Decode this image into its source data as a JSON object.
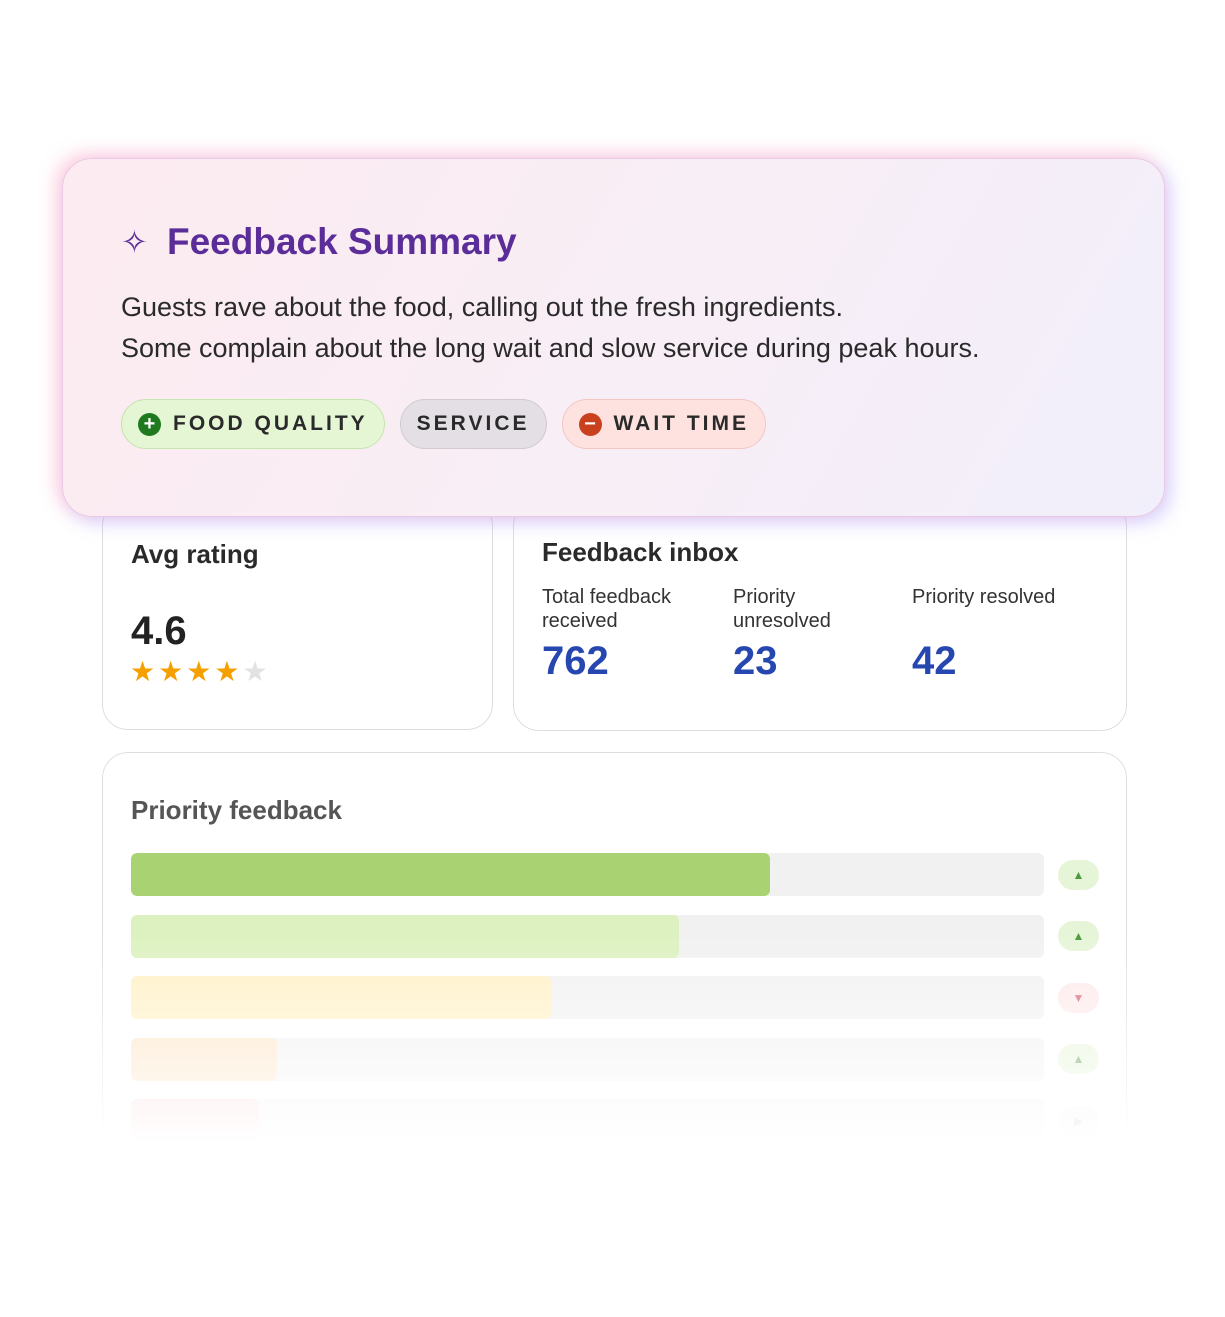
{
  "summary": {
    "title": "Feedback Summary",
    "lines": [
      "Guests rave about the food, calling out the fresh ingredients.",
      "Some complain about the long wait and slow service during peak hours."
    ],
    "tags": [
      {
        "label": "FOOD QUALITY",
        "sentiment": "positive"
      },
      {
        "label": "SERVICE",
        "sentiment": "neutral"
      },
      {
        "label": "WAIT TIME",
        "sentiment": "negative"
      }
    ]
  },
  "avg_rating": {
    "title": "Avg rating",
    "value": 4.6
  },
  "inbox": {
    "title": "Feedback inbox",
    "stats": [
      {
        "label": "Total feedback received",
        "value": 762
      },
      {
        "label": "Priority unresolved",
        "value": 23
      },
      {
        "label": "Priority resolved",
        "value": 42
      }
    ]
  },
  "priority": {
    "title": "Priority feedback",
    "bars": [
      {
        "value": 70,
        "color": "#a9d273",
        "trend": "up"
      },
      {
        "value": 60,
        "color": "#dcf1bf",
        "trend": "up"
      },
      {
        "value": 46,
        "color": "#fff0c4",
        "trend": "down"
      },
      {
        "value": 16,
        "color": "#fde3c2",
        "trend": "up"
      },
      {
        "value": 14,
        "color": "#fbd6d6",
        "trend": "right"
      }
    ]
  }
}
